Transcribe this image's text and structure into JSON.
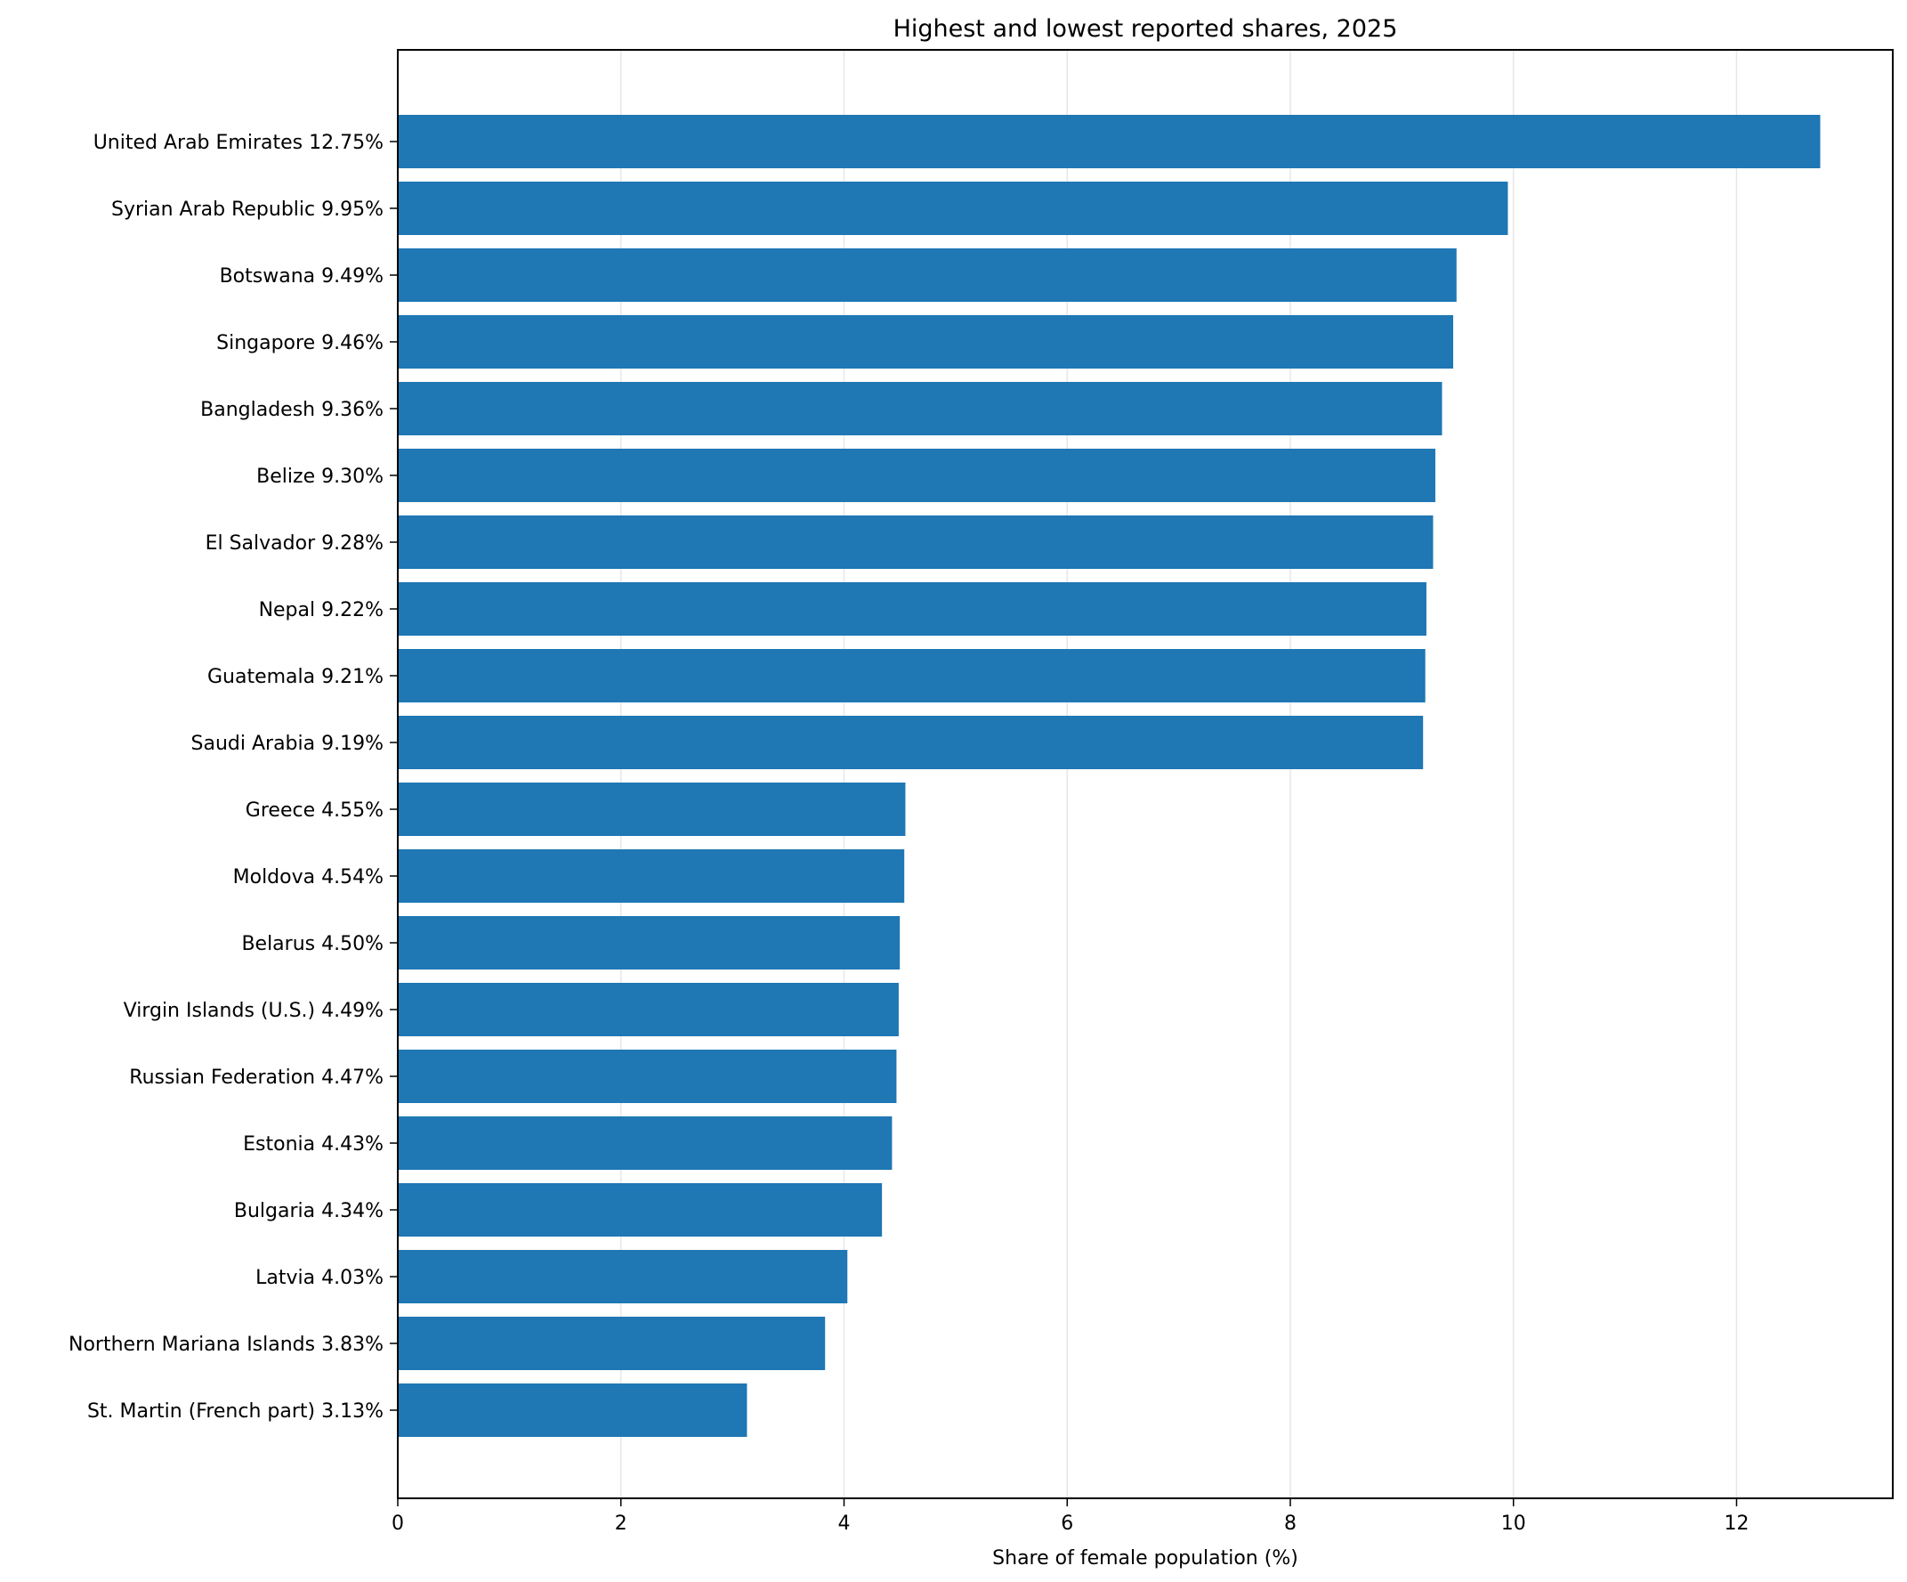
{
  "chart_data": {
    "type": "bar",
    "orientation": "horizontal",
    "title": "Highest and lowest reported shares, 2025",
    "xlabel": "Share of female population (%)",
    "ylabel": "",
    "xlim": [
      0,
      13.4
    ],
    "xticks": [
      0,
      2,
      4,
      6,
      8,
      10,
      12
    ],
    "grid": "x",
    "bar_color": "#1f77b4",
    "categories": [
      "United Arab Emirates  12.75%",
      "Syrian Arab Republic  9.95%",
      "Botswana  9.49%",
      "Singapore  9.46%",
      "Bangladesh  9.36%",
      "Belize  9.30%",
      "El Salvador  9.28%",
      "Nepal  9.22%",
      "Guatemala  9.21%",
      "Saudi Arabia  9.19%",
      "Greece  4.55%",
      "Moldova  4.54%",
      "Belarus  4.50%",
      "Virgin Islands (U.S.)  4.49%",
      "Russian Federation  4.47%",
      "Estonia  4.43%",
      "Bulgaria  4.34%",
      "Latvia  4.03%",
      "Northern Mariana Islands  3.83%",
      "St. Martin (French part)  3.13%"
    ],
    "values": [
      12.75,
      9.95,
      9.49,
      9.46,
      9.36,
      9.3,
      9.28,
      9.22,
      9.21,
      9.19,
      4.55,
      4.54,
      4.5,
      4.49,
      4.47,
      4.43,
      4.34,
      4.03,
      3.83,
      3.13
    ]
  }
}
